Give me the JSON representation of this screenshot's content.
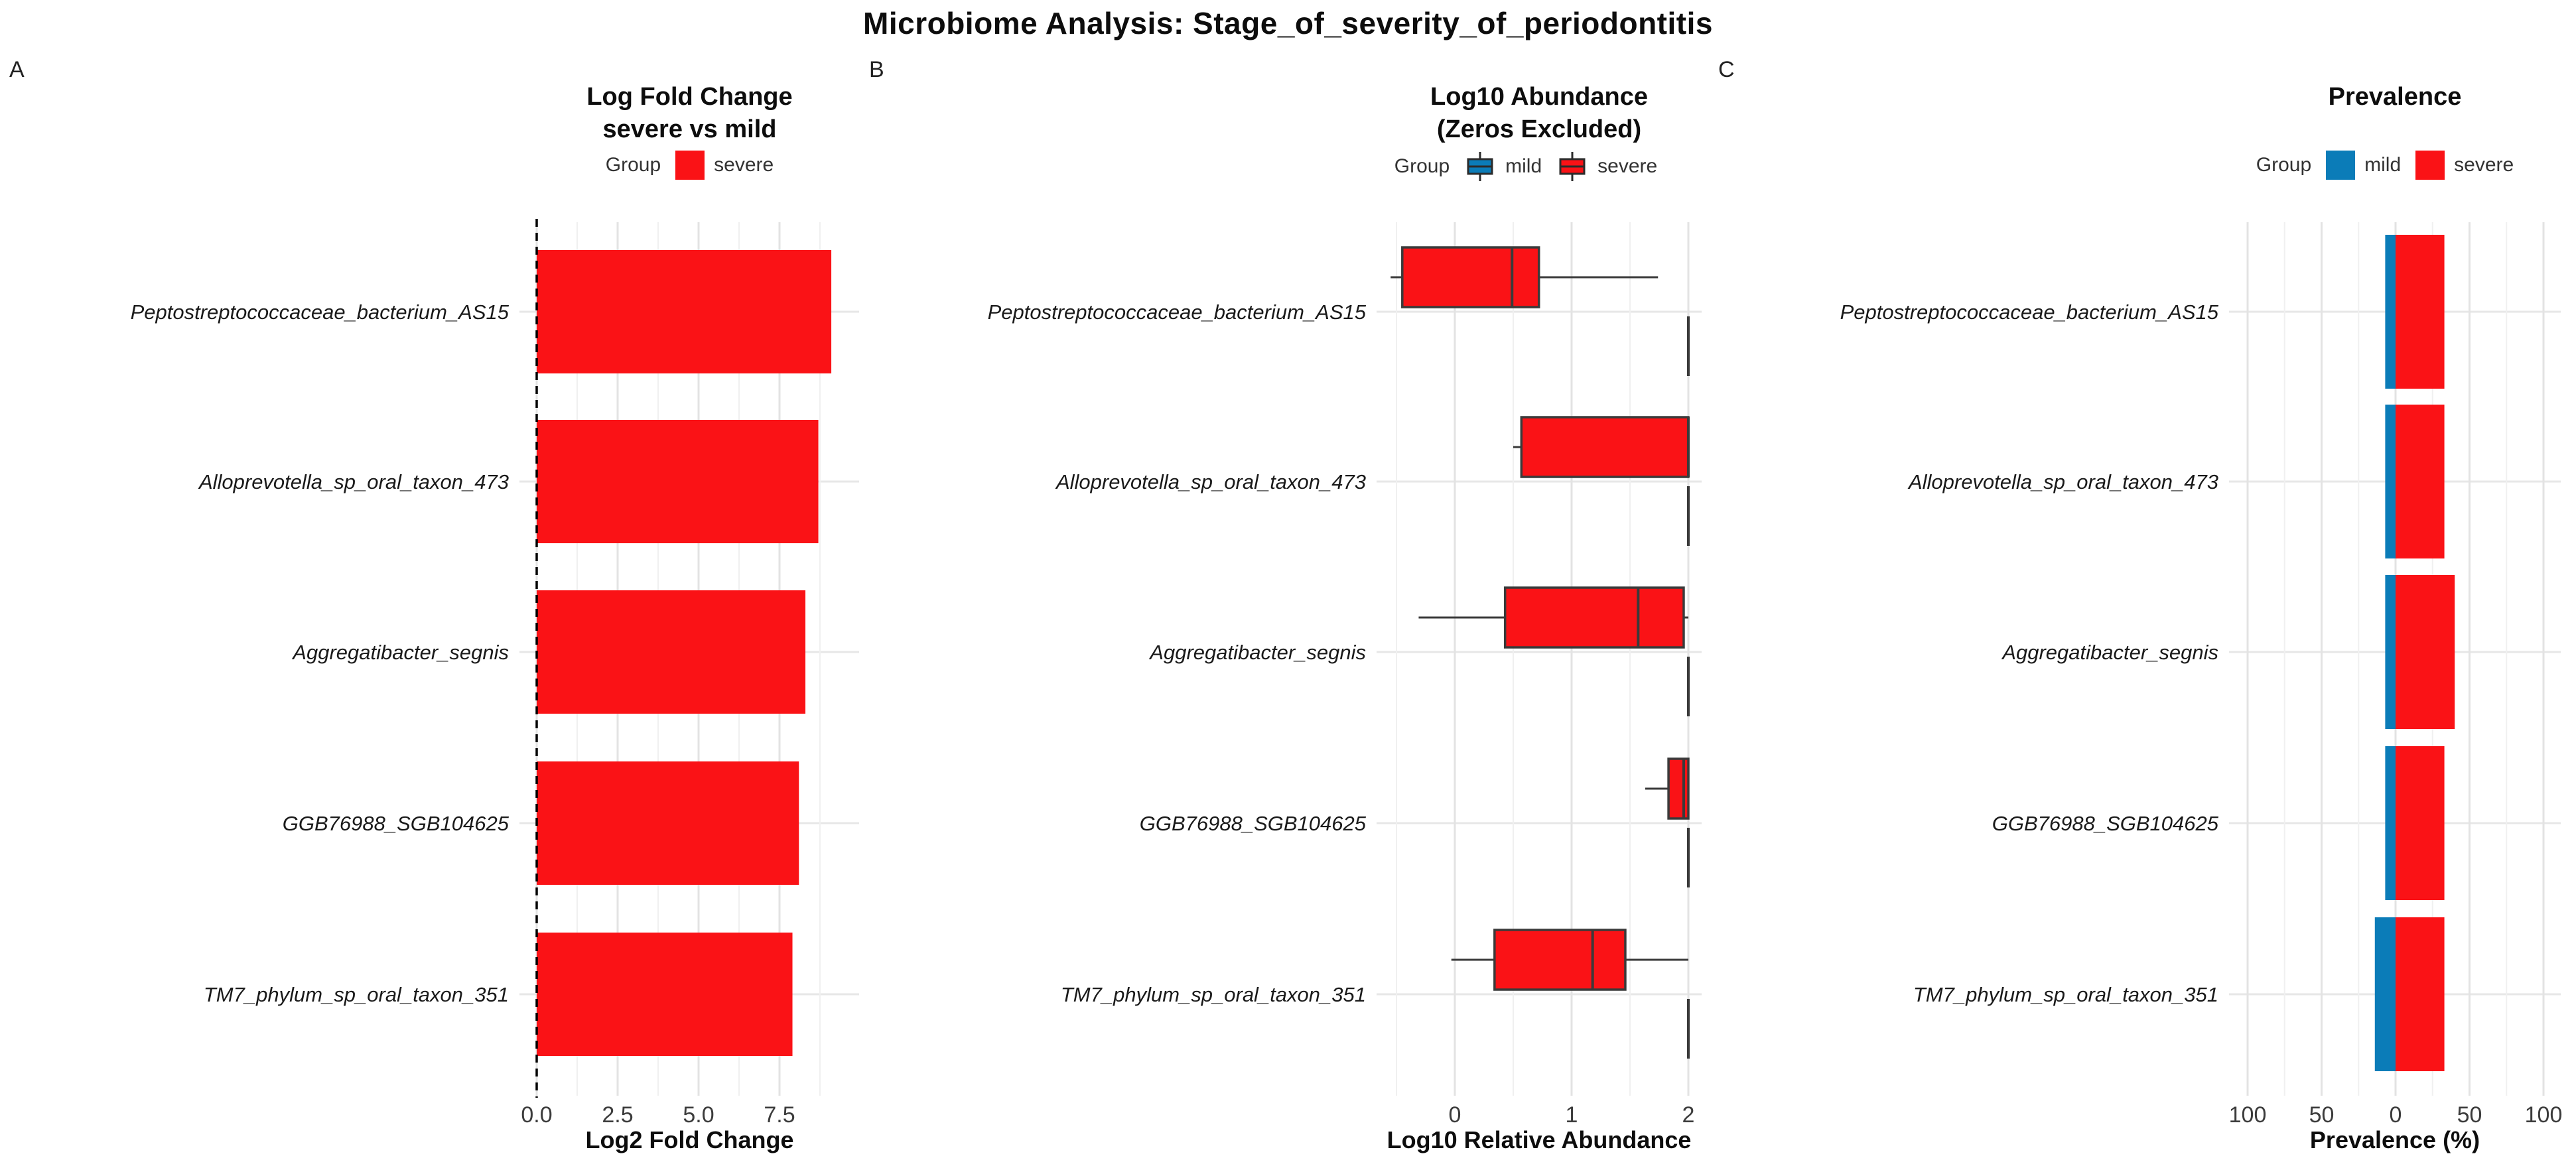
{
  "figure": {
    "title": "Microbiome Analysis: Stage_of_severity_of_periodontitis"
  },
  "colors": {
    "mild": "#0B7CB8",
    "severe": "#FA1216",
    "box_stroke": "#3A3A3A",
    "grid_major": "#E3E3E3",
    "grid_minor": "#F0F0F0",
    "row_grid": "#E7E7E7",
    "zero_line": "#000000",
    "tick_text": "#3C3C3C",
    "label_text": "#1A1A1A"
  },
  "taxa": [
    "Peptostreptococcaceae_bacterium_AS15",
    "Alloprevotella_sp_oral_taxon_473",
    "Aggregatibacter_segnis",
    "GGB76988_SGB104625",
    "TM7_phylum_sp_oral_taxon_351"
  ],
  "panels": [
    {
      "label": "A",
      "title_lines": [
        "Log Fold Change",
        "severe vs mild"
      ],
      "legend": {
        "title": "Group",
        "items": [
          {
            "label": "severe",
            "color": "severe",
            "glyph": "square"
          }
        ]
      }
    },
    {
      "label": "B",
      "title_lines": [
        "Log10 Abundance",
        "(Zeros Excluded)"
      ],
      "legend": {
        "title": "Group",
        "items": [
          {
            "label": "mild",
            "color": "mild",
            "glyph": "boxplot"
          },
          {
            "label": "severe",
            "color": "severe",
            "glyph": "boxplot"
          }
        ]
      }
    },
    {
      "label": "C",
      "title_lines": [
        "Prevalence"
      ],
      "legend": {
        "title": "Group",
        "items": [
          {
            "label": "mild",
            "color": "mild",
            "glyph": "square"
          },
          {
            "label": "severe",
            "color": "severe",
            "glyph": "square"
          }
        ]
      }
    }
  ],
  "chart_data": [
    {
      "type": "bar",
      "orientation": "horizontal",
      "title": "Log Fold Change severe vs mild",
      "categories": [
        "Peptostreptococcaceae_bacterium_AS15",
        "Alloprevotella_sp_oral_taxon_473",
        "Aggregatibacter_segnis",
        "GGB76988_SGB104625",
        "TM7_phylum_sp_oral_taxon_351"
      ],
      "series": [
        {
          "name": "severe",
          "values": [
            9.1,
            8.7,
            8.3,
            8.1,
            7.9
          ]
        }
      ],
      "xlabel": "Log2 Fold Change",
      "xlim": [
        -0.55,
        10.0
      ],
      "xticks": [
        0,
        2.5,
        5.0,
        7.5
      ],
      "xtick_labels": [
        "0.0",
        "2.5",
        "5.0",
        "7.5"
      ],
      "minor_ticks": [
        1.25,
        3.75,
        6.25,
        8.75
      ],
      "zero_line": {
        "style": "dashed",
        "x": 0
      },
      "legend_position": "top",
      "grid": true
    },
    {
      "type": "boxplot",
      "orientation": "horizontal",
      "title": "Log10 Abundance (Zeros Excluded)",
      "categories": [
        "Peptostreptococcaceae_bacterium_AS15",
        "Alloprevotella_sp_oral_taxon_473",
        "Aggregatibacter_segnis",
        "GGB76988_SGB104625",
        "TM7_phylum_sp_oral_taxon_351"
      ],
      "box_format": "[min, q1, median, q3, max]",
      "groups": [
        {
          "name": "mild",
          "boxes": [
            [
              2,
              2,
              2,
              2,
              2
            ],
            [
              2,
              2,
              2,
              2,
              2
            ],
            [
              2,
              2,
              2,
              2,
              2
            ],
            [
              2,
              2,
              2,
              2,
              2
            ],
            [
              2,
              2,
              2,
              2,
              2
            ]
          ]
        },
        {
          "name": "severe",
          "boxes": [
            [
              -0.55,
              -0.45,
              0.49,
              0.72,
              1.74
            ],
            [
              0.5,
              0.57,
              2.0,
              2.0,
              2.0
            ],
            [
              -0.31,
              0.43,
              1.57,
              1.96,
              2.0
            ],
            [
              1.63,
              1.83,
              1.96,
              2.0,
              2.0
            ],
            [
              -0.03,
              0.34,
              1.18,
              1.46,
              2.0
            ]
          ]
        }
      ],
      "xlabel": "Log10 Relative Abundance",
      "xlim": [
        -0.67,
        2.11
      ],
      "xticks": [
        0,
        1,
        2
      ],
      "xtick_labels": [
        "0",
        "1",
        "2"
      ],
      "minor_ticks": [
        -0.5,
        0.5,
        1.5
      ],
      "grid": true
    },
    {
      "type": "diverging_bar",
      "title": "Prevalence",
      "categories": [
        "Peptostreptococcaceae_bacterium_AS15",
        "Alloprevotella_sp_oral_taxon_473",
        "Aggregatibacter_segnis",
        "GGB76988_SGB104625",
        "TM7_phylum_sp_oral_taxon_351"
      ],
      "series": [
        {
          "name": "mild",
          "side": "left",
          "values": [
            7,
            7,
            7,
            7,
            14
          ]
        },
        {
          "name": "severe",
          "side": "right",
          "values": [
            33,
            33,
            40,
            33,
            33
          ]
        }
      ],
      "xlabel": "Prevalence (%)",
      "xlim": [
        -112,
        112
      ],
      "xticks": [
        -100,
        -50,
        0,
        50,
        100
      ],
      "xtick_labels": [
        "100",
        "50",
        "0",
        "50",
        "100"
      ],
      "minor_ticks": [
        -75,
        -25,
        25,
        75
      ],
      "grid": true
    }
  ]
}
